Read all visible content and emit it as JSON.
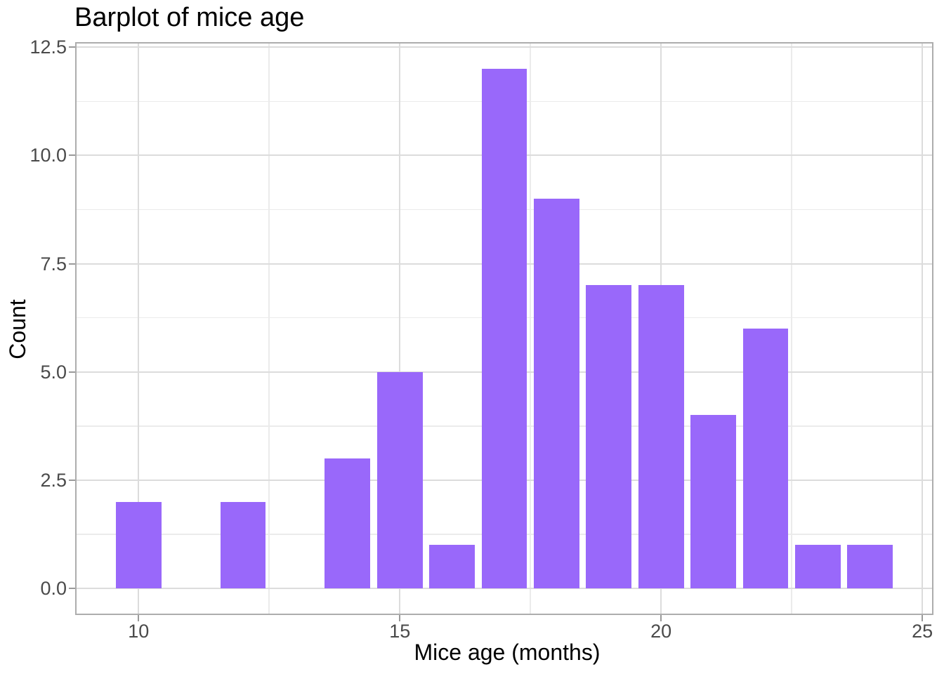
{
  "chart_data": {
    "type": "bar",
    "title": "Barplot of mice age",
    "xlabel": "Mice age (months)",
    "ylabel": "Count",
    "x": [
      10,
      12,
      14,
      15,
      16,
      17,
      18,
      19,
      20,
      21,
      22,
      23,
      24
    ],
    "values": [
      2,
      2,
      3,
      5,
      1,
      12,
      9,
      7,
      7,
      4,
      6,
      1,
      1
    ],
    "bar_width": 0.87,
    "bar_color": "#9968fa",
    "x_ticks": {
      "values": [
        10,
        15,
        20,
        25
      ],
      "labels": [
        "10",
        "15",
        "20",
        "25"
      ]
    },
    "y_ticks": {
      "values": [
        0,
        2.5,
        5,
        7.5,
        10,
        12.5
      ],
      "labels": [
        "0.0",
        "2.5",
        "5.0",
        "7.5",
        "10.0",
        "12.5"
      ]
    },
    "x_minor_gridlines": [
      12.5,
      17.5,
      22.5
    ],
    "y_minor_gridlines": [
      1.25,
      3.75,
      6.25,
      8.75,
      11.25
    ],
    "xlim": [
      8.8,
      25.2
    ],
    "ylim": [
      -0.6,
      12.6
    ],
    "grid": "major and minor, light grey on white",
    "legend_position": "none",
    "theme": {
      "background": "#ffffff",
      "panel_border": "#adadad",
      "grid_major_color": "#dcdcdc",
      "grid_minor_color": "#ebebeb",
      "tick_mark_color": "#9a9a9a",
      "tick_label_color": "#4a4a4a",
      "title_color": "#000000"
    }
  }
}
